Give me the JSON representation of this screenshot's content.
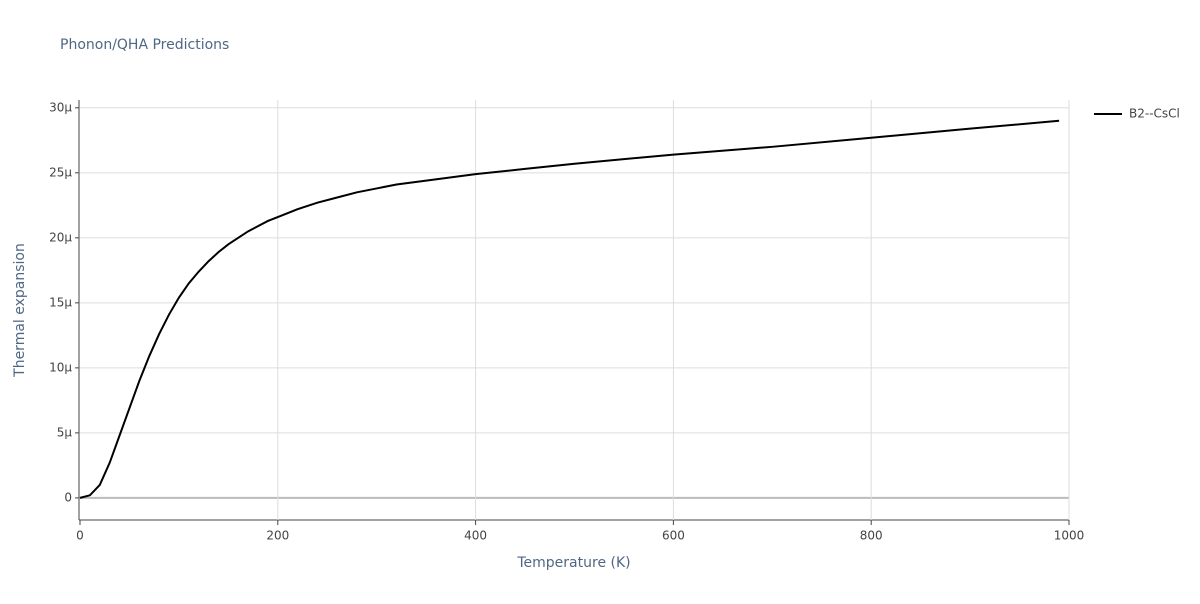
{
  "chart_data": {
    "type": "line",
    "title": "Phonon/QHA Predictions",
    "x_label": "Temperature (K)",
    "y_label": "Thermal expansion",
    "x": [
      0,
      10,
      20,
      30,
      40,
      50,
      60,
      70,
      80,
      90,
      100,
      110,
      120,
      130,
      140,
      150,
      160,
      170,
      180,
      190,
      200,
      220,
      240,
      260,
      280,
      300,
      320,
      350,
      400,
      450,
      500,
      600,
      700,
      800,
      900,
      990
    ],
    "series": [
      {
        "name": "B2--CsCl",
        "color": "#000000",
        "values": [
          0,
          2e-07,
          1e-06,
          2.7e-06,
          4.8e-06,
          6.9e-06,
          9e-06,
          1.09e-05,
          1.26e-05,
          1.41e-05,
          1.54e-05,
          1.65e-05,
          1.74e-05,
          1.82e-05,
          1.89e-05,
          1.95e-05,
          2e-05,
          2.05e-05,
          2.09e-05,
          2.13e-05,
          2.16e-05,
          2.22e-05,
          2.27e-05,
          2.31e-05,
          2.35e-05,
          2.38e-05,
          2.41e-05,
          2.44e-05,
          2.49e-05,
          2.53e-05,
          2.57e-05,
          2.64e-05,
          2.7e-05,
          2.77e-05,
          2.84e-05,
          2.9e-05
        ]
      }
    ],
    "xlim": [
      0,
      1000
    ],
    "xticks": [
      0,
      200,
      400,
      600,
      800,
      1000
    ],
    "ylim": [
      -1.7e-06,
      3.06e-05
    ],
    "yticks": [
      0,
      {
        "value": 5e-06,
        "label": "5μ"
      },
      {
        "value": 1e-05,
        "label": "10μ"
      },
      {
        "value": 1.5e-05,
        "label": "15μ"
      },
      {
        "value": 2e-05,
        "label": "20μ"
      },
      {
        "value": 2.5e-05,
        "label": "25μ"
      },
      {
        "value": 3e-05,
        "label": "30μ"
      }
    ],
    "grid": true,
    "legend": "right"
  }
}
